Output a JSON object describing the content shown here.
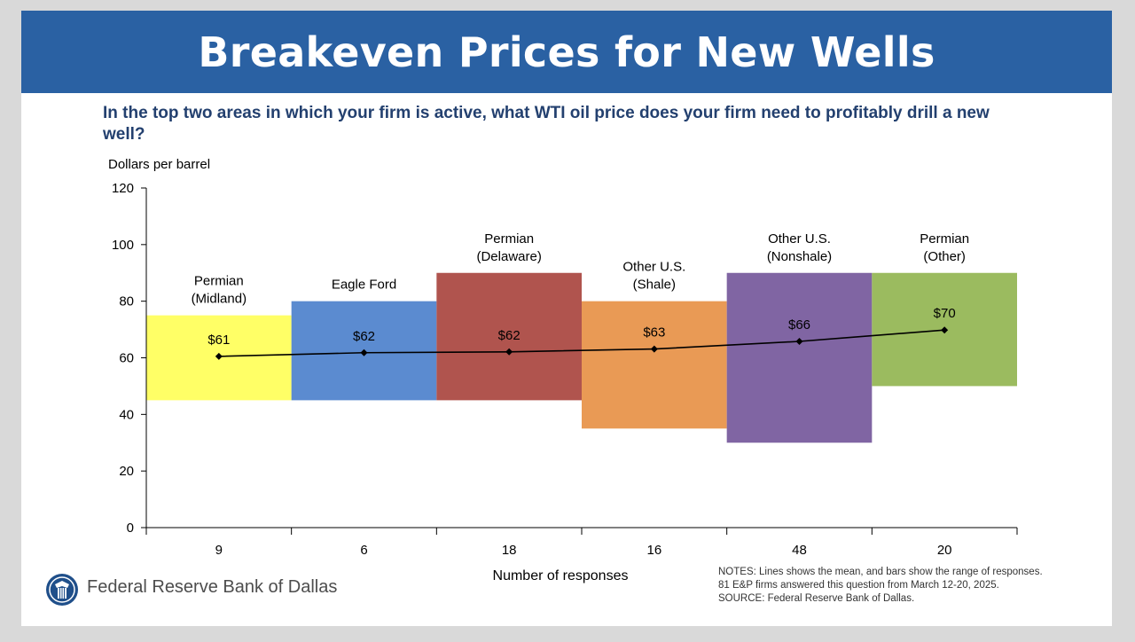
{
  "title": "Breakeven Prices for New Wells",
  "question": "In the top two areas in which your firm is active, what WTI oil price does your firm need to profitably drill a new well?",
  "notes": [
    "NOTES: Lines shows the mean, and bars show the range of responses.",
    "81 E&P firms answered this question from March 12-20, 2025.",
    "SOURCE: Federal Reserve Bank of Dallas."
  ],
  "logo": {
    "text": "Federal Reserve Bank of Dallas",
    "icon": "federal-reserve-eagle-seal-icon"
  },
  "chart_data": {
    "type": "bar",
    "subtype": "floating range bars with mean line",
    "ylabel": "Dollars per barrel",
    "xlabel": "Number of responses",
    "ylim": [
      0,
      120
    ],
    "yticks": [
      0,
      20,
      40,
      60,
      80,
      100,
      120
    ],
    "categories": [
      {
        "label_lines": [
          "Permian",
          "(Midland)"
        ],
        "responses": "9",
        "low": 45,
        "high": 75,
        "mean": 60.5,
        "mean_label": "$61",
        "color": "#ffff66"
      },
      {
        "label_lines": [
          "Eagle Ford"
        ],
        "responses": "6",
        "low": 45,
        "high": 80,
        "mean": 61.8,
        "mean_label": "$62",
        "color": "#5b8bd0"
      },
      {
        "label_lines": [
          "Permian",
          "(Delaware)"
        ],
        "responses": "18",
        "low": 45,
        "high": 90,
        "mean": 62.1,
        "mean_label": "$62",
        "color": "#b0544e"
      },
      {
        "label_lines": [
          "Other U.S.",
          "(Shale)"
        ],
        "responses": "16",
        "low": 35,
        "high": 80,
        "mean": 63.1,
        "mean_label": "$63",
        "color": "#e99a55"
      },
      {
        "label_lines": [
          "Other U.S.",
          "(Nonshale)"
        ],
        "responses": "48",
        "low": 30,
        "high": 90,
        "mean": 65.8,
        "mean_label": "$66",
        "color": "#8065a3"
      },
      {
        "label_lines": [
          "Permian",
          "(Other)"
        ],
        "responses": "20",
        "low": 50,
        "high": 90,
        "mean": 69.8,
        "mean_label": "$70",
        "color": "#9bbb5f"
      }
    ],
    "grid": false,
    "legend": "none"
  }
}
